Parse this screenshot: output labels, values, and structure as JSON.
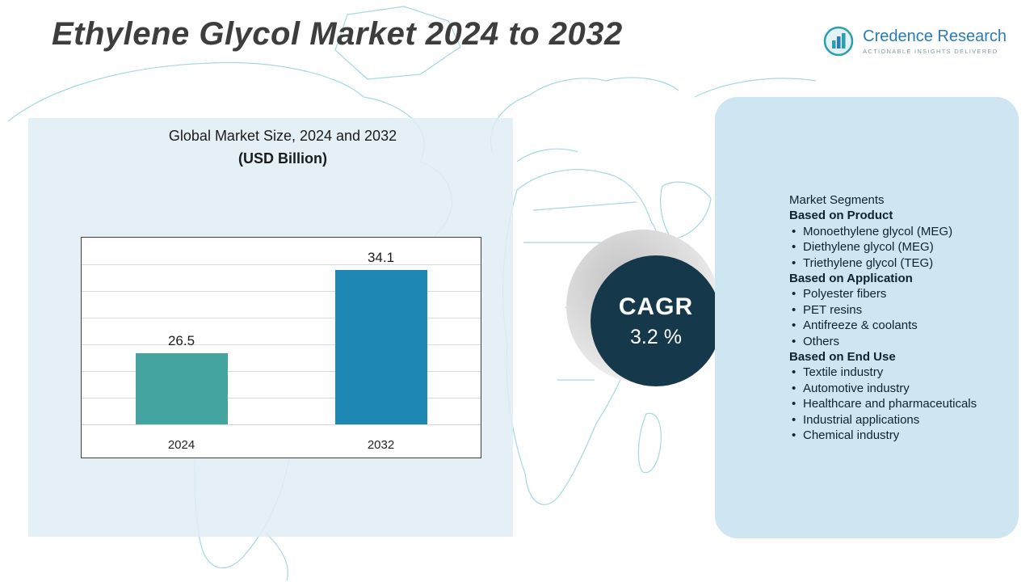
{
  "title": "Ethylene Glycol Market 2024 to 2032",
  "logo": {
    "name": "Credence Research",
    "tagline": "Actionable Insights Delivered"
  },
  "chart_panel": {
    "heading_line1": "Global Market Size, 2024 and 2032",
    "heading_line2": "(USD Billion)"
  },
  "chart_data": {
    "type": "bar",
    "categories": [
      "2024",
      "2032"
    ],
    "values": [
      26.5,
      34.1
    ],
    "title": "Global Market Size, 2024 and 2032 (USD Billion)",
    "xlabel": "",
    "ylabel": "",
    "ylim": [
      20,
      36
    ],
    "grid": true,
    "legend": false,
    "bar_colors": [
      "#44a5a0",
      "#1e87b4"
    ]
  },
  "cagr": {
    "label": "CAGR",
    "value": "3.2 %"
  },
  "segments": {
    "title": "Market Segments",
    "groups": [
      {
        "heading": "Based on Product",
        "items": [
          "Monoethylene glycol (MEG)",
          "Diethylene glycol (MEG)",
          "Triethylene glycol (TEG)"
        ]
      },
      {
        "heading": "Based on Application",
        "items": [
          "Polyester fibers",
          "PET resins",
          "Antifreeze & coolants",
          "Others"
        ]
      },
      {
        "heading": "Based on End Use",
        "items": [
          "Textile industry",
          "Automotive industry",
          "Healthcare and pharmaceuticals",
          "Industrial applications",
          "Chemical industry"
        ]
      }
    ]
  },
  "colors": {
    "bar_2024": "#44a5a0",
    "bar_2032": "#1e87b4",
    "cagr_circle": "#15384a",
    "segments_panel_bg": "#cde6f1",
    "left_panel_bg": "#e0edf5",
    "map_stroke": "#86ccd7",
    "logo_blue": "#2a7cb8"
  }
}
